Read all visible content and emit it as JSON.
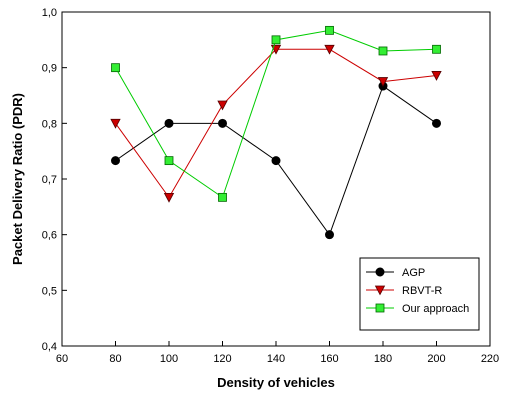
{
  "chart_data": {
    "type": "line",
    "title": "",
    "xlabel": "Density of vehicles",
    "ylabel": "Packet Delivery Ratio (PDR)",
    "xlim": [
      60,
      220
    ],
    "ylim": [
      0.4,
      1.0
    ],
    "xticks": [
      60,
      80,
      100,
      120,
      140,
      160,
      180,
      200,
      220
    ],
    "yticks": [
      0.4,
      0.5,
      0.6,
      0.7,
      0.8,
      0.9,
      1.0
    ],
    "xtick_labels": [
      "60",
      "80",
      "100",
      "120",
      "140",
      "160",
      "180",
      "200",
      "220"
    ],
    "ytick_labels": [
      "0,4",
      "0,5",
      "0,6",
      "0,7",
      "0,8",
      "0,9",
      "1,0"
    ],
    "x": [
      80,
      100,
      120,
      140,
      160,
      180,
      200
    ],
    "grid": false,
    "legend_position": "bottom-right",
    "series": [
      {
        "name": "AGP",
        "marker": "circle",
        "color": "#000000",
        "fill": "#000000",
        "values": [
          0.733,
          0.8,
          0.8,
          0.733,
          0.6,
          0.867,
          0.8
        ]
      },
      {
        "name": "RBVT-R",
        "marker": "triangle-down",
        "color": "#cc0000",
        "fill": "#cc0000",
        "values": [
          0.8,
          0.667,
          0.833,
          0.933,
          0.933,
          0.875,
          0.886
        ]
      },
      {
        "name": "Our approach",
        "marker": "square",
        "color": "#00cc00",
        "fill": "#33ee33",
        "values": [
          0.9,
          0.733,
          0.667,
          0.95,
          0.967,
          0.93,
          0.933
        ]
      }
    ]
  }
}
